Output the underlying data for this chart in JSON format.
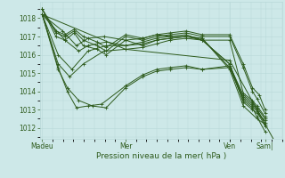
{
  "background_color": "#cde8e8",
  "plot_bg_color": "#cde8e8",
  "line_color": "#2d5a1b",
  "grid_color": "#b8d8d8",
  "tick_color": "#2d5a1b",
  "label_color": "#2d5a1b",
  "xlabel": "Pression niveau de la mer( hPa )",
  "yticks": [
    1012,
    1013,
    1014,
    1015,
    1016,
    1017,
    1018
  ],
  "xtick_labels": [
    "Madeu",
    "Mer",
    "Ven",
    "Sam|"
  ],
  "xtick_positions": [
    0.0,
    0.365,
    0.82,
    0.975
  ],
  "ylim": [
    1011.4,
    1018.9
  ],
  "xlim": [
    -0.01,
    1.05
  ],
  "series": [
    {
      "x": [
        0.0,
        0.1,
        0.16,
        0.2,
        0.28,
        0.365,
        0.44,
        0.5,
        0.56,
        0.63,
        0.7,
        0.82,
        0.88,
        0.94,
        0.975
      ],
      "y": [
        1018.2,
        1016.8,
        1016.2,
        1016.5,
        1016.7,
        1016.5,
        1016.6,
        1016.8,
        1016.9,
        1017.0,
        1016.9,
        1015.2,
        1013.2,
        1012.5,
        1012.2
      ]
    },
    {
      "x": [
        0.0,
        0.09,
        0.15,
        0.2,
        0.27,
        0.365,
        0.44,
        0.5,
        0.56,
        0.63,
        0.7,
        0.82,
        0.88,
        0.92,
        0.94,
        0.975
      ],
      "y": [
        1018.2,
        1017.3,
        1016.5,
        1016.9,
        1017.0,
        1016.8,
        1016.9,
        1017.1,
        1017.0,
        1017.1,
        1016.8,
        1015.5,
        1013.4,
        1013.0,
        1012.8,
        1012.4
      ]
    },
    {
      "x": [
        0.0,
        0.07,
        0.13,
        0.2,
        0.28,
        0.365,
        0.44,
        0.5,
        0.56,
        0.63,
        0.7,
        0.82,
        0.88,
        0.92,
        0.94,
        0.975
      ],
      "y": [
        1018.2,
        1016.0,
        1015.2,
        1016.2,
        1016.5,
        1016.5,
        1016.7,
        1016.9,
        1017.0,
        1017.0,
        1016.9,
        1015.3,
        1013.5,
        1013.1,
        1012.6,
        1011.8
      ]
    },
    {
      "x": [
        0.0,
        0.07,
        0.12,
        0.18,
        0.27,
        0.365,
        0.44,
        0.5,
        0.56,
        0.63,
        0.7,
        0.82,
        0.88,
        0.92,
        0.94,
        0.975
      ],
      "y": [
        1018.2,
        1015.5,
        1014.8,
        1015.5,
        1016.2,
        1016.3,
        1016.4,
        1016.6,
        1016.8,
        1016.9,
        1016.8,
        1015.5,
        1013.6,
        1013.2,
        1012.9,
        1012.1
      ]
    },
    {
      "x": [
        0.0,
        0.07,
        0.11,
        0.16,
        0.22,
        0.28,
        0.365,
        0.44,
        0.5,
        0.56,
        0.63,
        0.7,
        0.82,
        0.88,
        0.92,
        0.94,
        0.975
      ],
      "y": [
        1018.2,
        1015.2,
        1014.2,
        1013.5,
        1013.2,
        1013.1,
        1014.2,
        1014.8,
        1015.1,
        1015.2,
        1015.3,
        1015.2,
        1015.3,
        1013.7,
        1013.3,
        1013.0,
        1012.3
      ]
    },
    {
      "x": [
        0.0,
        0.07,
        0.11,
        0.15,
        0.2,
        0.26,
        0.365,
        0.44,
        0.5,
        0.56,
        0.63,
        0.7,
        0.82,
        0.88,
        0.92,
        0.94,
        0.975
      ],
      "y": [
        1018.2,
        1015.3,
        1014.0,
        1013.1,
        1013.2,
        1013.3,
        1014.3,
        1014.9,
        1015.2,
        1015.3,
        1015.4,
        1015.2,
        1015.4,
        1013.8,
        1013.4,
        1013.1,
        1012.5
      ]
    },
    {
      "x": [
        0.0,
        0.06,
        0.1,
        0.14,
        0.18,
        0.24,
        0.28,
        0.365,
        0.44,
        0.5,
        0.56,
        0.63,
        0.7,
        0.82,
        0.88,
        0.92,
        0.94,
        0.975
      ],
      "y": [
        1018.5,
        1017.0,
        1016.8,
        1017.2,
        1016.5,
        1016.3,
        1016.0,
        1016.8,
        1016.5,
        1016.8,
        1016.9,
        1017.0,
        1016.8,
        1016.8,
        1013.9,
        1013.5,
        1013.2,
        1012.6
      ]
    },
    {
      "x": [
        0.0,
        0.06,
        0.1,
        0.14,
        0.18,
        0.24,
        0.28,
        0.365,
        0.44,
        0.5,
        0.56,
        0.63,
        0.7,
        0.82,
        0.88,
        0.92,
        0.94,
        0.975
      ],
      "y": [
        1018.5,
        1017.2,
        1017.0,
        1017.3,
        1016.8,
        1016.5,
        1016.2,
        1017.0,
        1016.8,
        1017.0,
        1017.1,
        1017.2,
        1017.0,
        1017.0,
        1015.3,
        1014.0,
        1013.6,
        1012.8
      ]
    },
    {
      "x": [
        0.0,
        0.06,
        0.1,
        0.14,
        0.18,
        0.24,
        0.28,
        0.365,
        0.44,
        0.5,
        0.56,
        0.63,
        0.7,
        0.82,
        0.88,
        0.92,
        0.95,
        0.975
      ],
      "y": [
        1018.5,
        1017.3,
        1017.1,
        1017.4,
        1017.0,
        1016.7,
        1016.4,
        1017.1,
        1016.9,
        1017.1,
        1017.2,
        1017.3,
        1017.1,
        1017.1,
        1015.5,
        1014.2,
        1013.8,
        1013.0
      ]
    },
    {
      "x": [
        0.0,
        0.365,
        0.82,
        1.02
      ],
      "y": [
        1018.2,
        1016.3,
        1015.7,
        1011.2
      ]
    }
  ],
  "marker": "+",
  "marker_size": 2.5,
  "linewidth": 0.7
}
